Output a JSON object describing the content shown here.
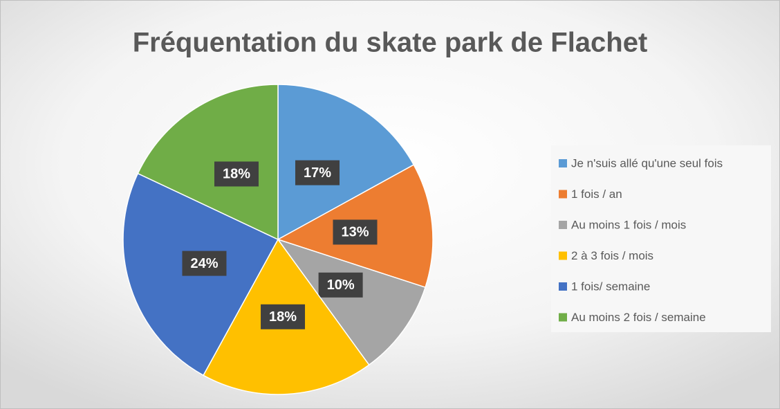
{
  "chart_data": {
    "type": "pie",
    "title": "Fréquentation du skate park de Flachet",
    "categories": [
      "Je n'suis allé qu'une seul fois",
      "1 fois / an",
      "Au moins 1 fois / mois",
      "2 à 3 fois / mois",
      "1 fois/ semaine",
      "Au moins 2 fois / semaine"
    ],
    "values": [
      17,
      13,
      10,
      18,
      24,
      18
    ],
    "value_labels": [
      "17%",
      "13%",
      "10%",
      "18%",
      "24%",
      "18%"
    ],
    "colors": [
      "#5b9bd5",
      "#ed7d31",
      "#a5a5a5",
      "#ffc000",
      "#4472c4",
      "#70ad47"
    ],
    "legend": "right"
  }
}
